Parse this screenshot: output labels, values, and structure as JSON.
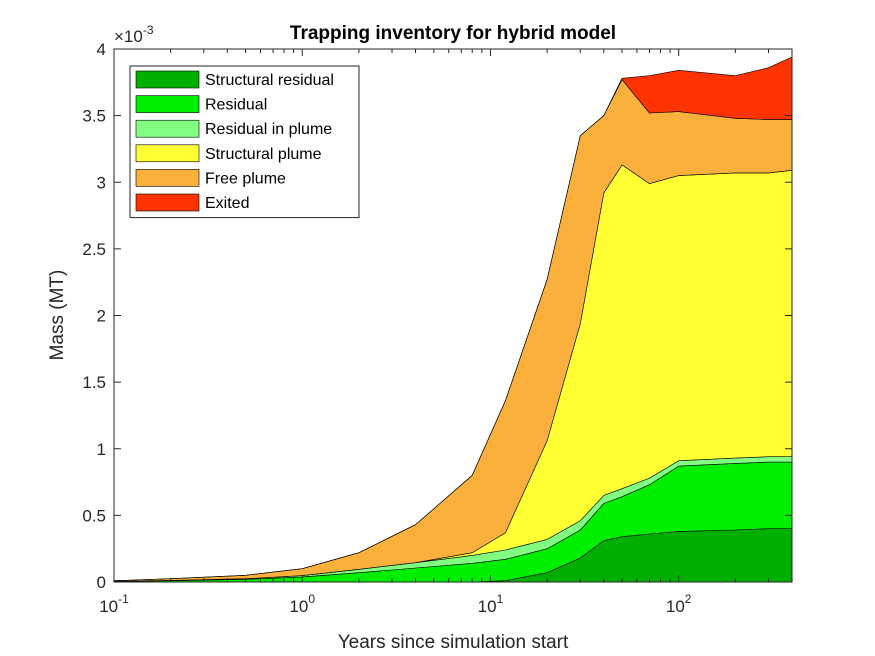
{
  "chart_data": {
    "type": "area",
    "title": "Trapping inventory for hybrid model",
    "xlabel": "Years since simulation start",
    "ylabel": "Mass (MT)",
    "x_scale": "log",
    "xlim": [
      0.1,
      400
    ],
    "ylim": [
      0,
      0.004
    ],
    "y_exponent_label": "×10",
    "y_exponent_value": "-3",
    "x_ticks": [
      {
        "value": 0.1,
        "base": "10",
        "exp": "-1"
      },
      {
        "value": 1,
        "base": "10",
        "exp": "0"
      },
      {
        "value": 10,
        "base": "10",
        "exp": "1"
      },
      {
        "value": 100,
        "base": "10",
        "exp": "2"
      }
    ],
    "y_ticks": [
      {
        "value": 0,
        "label": "0"
      },
      {
        "value": 0.0005,
        "label": "0.5"
      },
      {
        "value": 0.001,
        "label": "1"
      },
      {
        "value": 0.0015,
        "label": "1.5"
      },
      {
        "value": 0.002,
        "label": "2"
      },
      {
        "value": 0.0025,
        "label": "2.5"
      },
      {
        "value": 0.003,
        "label": "3"
      },
      {
        "value": 0.0035,
        "label": "3.5"
      },
      {
        "value": 0.004,
        "label": "4"
      }
    ],
    "legend_position": "top-left",
    "x": [
      0.1,
      0.2,
      0.5,
      1,
      2,
      4,
      8,
      12,
      20,
      30,
      40,
      50,
      70,
      100,
      200,
      300,
      400
    ],
    "series": [
      {
        "name": "Structural residual",
        "color": "#00B000",
        "values": [
          0,
          0,
          0,
          0,
          0,
          0,
          0,
          1e-05,
          7e-05,
          0.00018,
          0.00031,
          0.00034,
          0.00036,
          0.00038,
          0.00039,
          0.0004,
          0.0004
        ]
      },
      {
        "name": "Residual",
        "color": "#00EE00",
        "values": [
          5e-06,
          1e-05,
          2e-05,
          3.8e-05,
          7e-05,
          0.000105,
          0.00014,
          0.00016,
          0.00018,
          0.00021,
          0.00028,
          0.0003,
          0.00037,
          0.00049,
          0.0005,
          0.0005,
          0.0005
        ]
      },
      {
        "name": "Residual in plume",
        "color": "#80FF80",
        "values": [
          0,
          2e-06,
          5e-06,
          1e-05,
          2.5e-05,
          4e-05,
          6e-05,
          7e-05,
          7e-05,
          7e-05,
          6e-05,
          6e-05,
          5e-05,
          4e-05,
          4e-05,
          4e-05,
          4e-05
        ]
      },
      {
        "name": "Structural plume",
        "color": "#FFFF33",
        "values": [
          0,
          0,
          0,
          0,
          0,
          0,
          2e-05,
          0.00013,
          0.00074,
          0.00148,
          0.00227,
          0.00243,
          0.00221,
          0.00214,
          0.00214,
          0.00213,
          0.00215
        ]
      },
      {
        "name": "Free plume",
        "color": "#FBB03B",
        "values": [
          5e-06,
          1.3e-05,
          2.5e-05,
          5.2e-05,
          0.000125,
          0.000285,
          0.00058,
          0.00099,
          0.00121,
          0.00141,
          0.00058,
          0.00064,
          0.00053,
          0.00048,
          0.00041,
          0.0004,
          0.00038
        ]
      },
      {
        "name": "Exited",
        "color": "#FF3300",
        "values": [
          0,
          0,
          0,
          0,
          0,
          0,
          0,
          0,
          0,
          0,
          0,
          1e-05,
          0.00028,
          0.00031,
          0.00032,
          0.00039,
          0.00047
        ]
      }
    ]
  }
}
